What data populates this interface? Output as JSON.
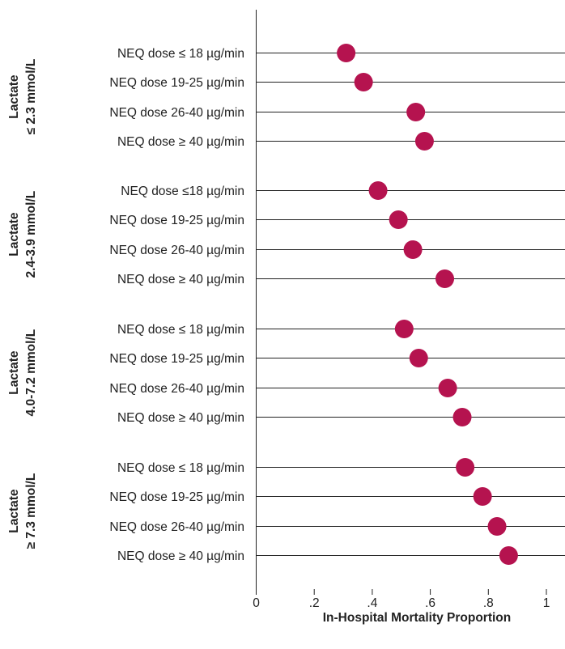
{
  "chart_data": {
    "type": "scatter",
    "xlabel": "In-Hospital Mortality Proportion",
    "xlim": [
      0,
      1
    ],
    "x_ticks": [
      "0",
      ".2",
      ".4",
      ".6",
      ".8",
      "1"
    ],
    "x_tick_values": [
      0,
      0.2,
      0.4,
      0.6,
      0.8,
      1.0
    ],
    "grid": "horizontal reference lines at each row",
    "marker_color": "#b5134f",
    "groups": [
      {
        "label_line1": "Lactate",
        "label_line2": "≤ 2.3 mmol/L",
        "rows": [
          {
            "label": "NEQ dose ≤ 18 µg/min",
            "value": 0.31
          },
          {
            "label": "NEQ dose 19-25 µg/min",
            "value": 0.37
          },
          {
            "label": "NEQ dose 26-40 µg/min",
            "value": 0.55
          },
          {
            "label": "NEQ dose ≥ 40 µg/min",
            "value": 0.58
          }
        ]
      },
      {
        "label_line1": "Lactate",
        "label_line2": "2.4-3.9 mmol/L",
        "rows": [
          {
            "label": "NEQ dose ≤18 µg/min",
            "value": 0.42
          },
          {
            "label": "NEQ dose 19-25 µg/min",
            "value": 0.49
          },
          {
            "label": "NEQ dose 26-40 µg/min",
            "value": 0.54
          },
          {
            "label": "NEQ dose ≥ 40 µg/min",
            "value": 0.65
          }
        ]
      },
      {
        "label_line1": "Lactate",
        "label_line2": "4.0-7.2 mmol/L",
        "rows": [
          {
            "label": "NEQ dose ≤ 18 µg/min",
            "value": 0.51
          },
          {
            "label": "NEQ dose 19-25 µg/min",
            "value": 0.56
          },
          {
            "label": "NEQ dose 26-40 µg/min",
            "value": 0.66
          },
          {
            "label": "NEQ dose ≥ 40 µg/min",
            "value": 0.71
          }
        ]
      },
      {
        "label_line1": "Lactate",
        "label_line2": "≥ 7.3 mmol/L",
        "rows": [
          {
            "label": "NEQ dose ≤ 18 µg/min",
            "value": 0.72
          },
          {
            "label": "NEQ dose 19-25 µg/min",
            "value": 0.78
          },
          {
            "label": "NEQ dose 26-40 µg/min",
            "value": 0.83
          },
          {
            "label": "NEQ dose ≥ 40 µg/min",
            "value": 0.87
          }
        ]
      }
    ]
  }
}
